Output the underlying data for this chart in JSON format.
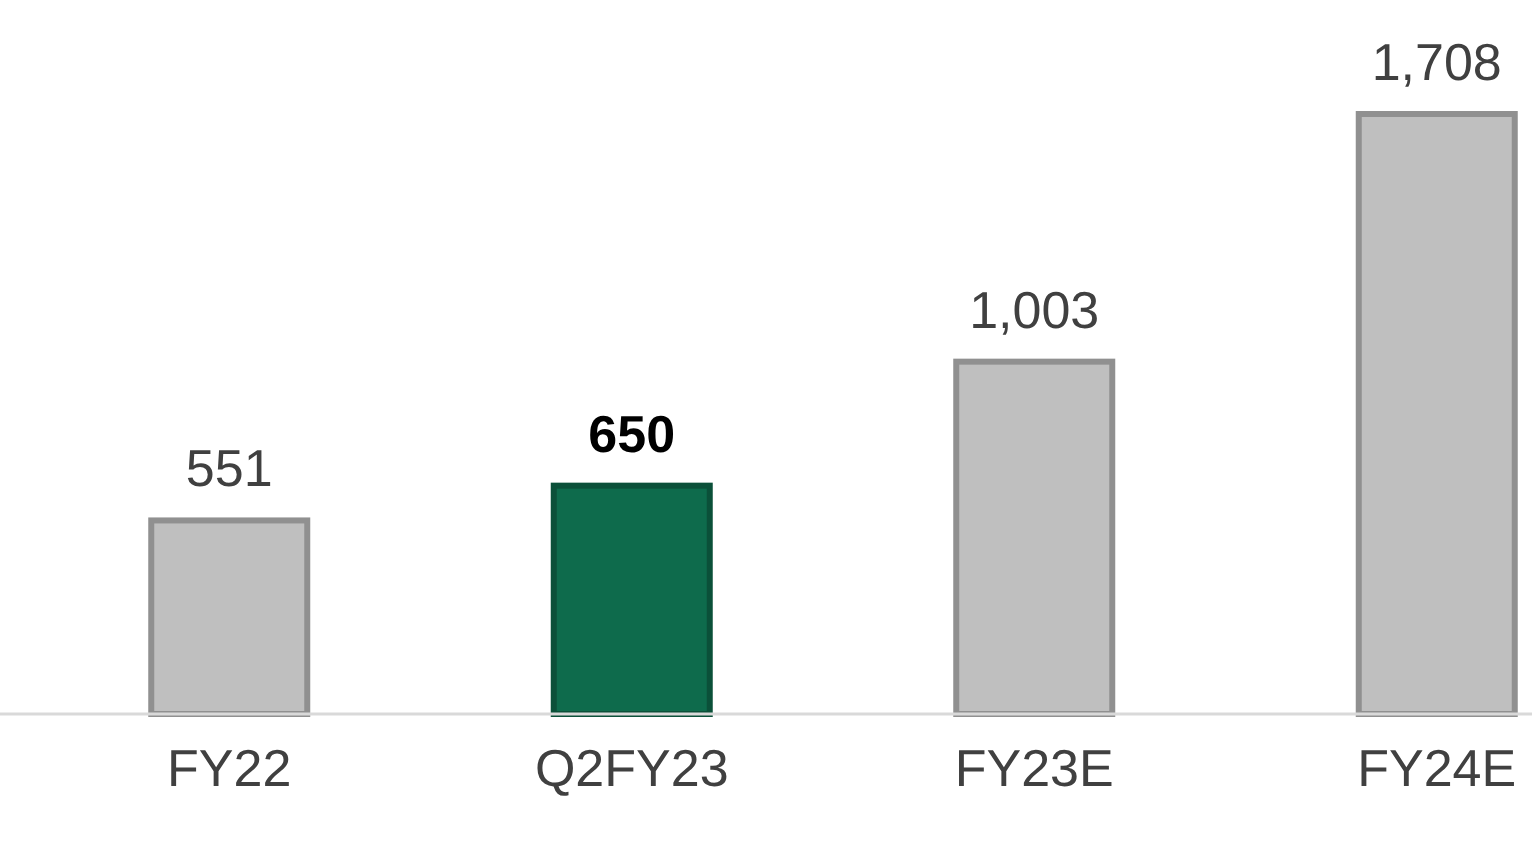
{
  "chart_data": {
    "type": "bar",
    "categories": [
      "FY22",
      "Q2FY23",
      "FY23E",
      "FY24E"
    ],
    "values": [
      551,
      650,
      1003,
      1708
    ],
    "colors": [
      "#bfbfbf",
      "#0e6b4c",
      "#bfbfbf",
      "#bfbfbf"
    ],
    "value_labels": [
      "551",
      "650",
      "1,003",
      "1,708"
    ]
  }
}
